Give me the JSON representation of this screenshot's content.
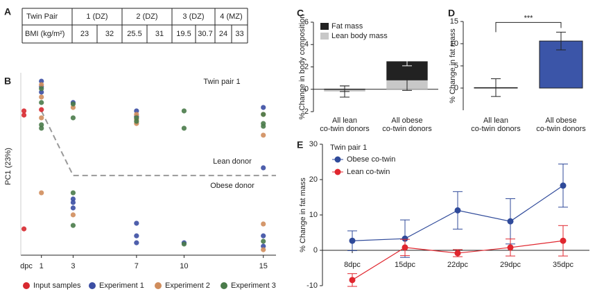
{
  "panel_labels": [
    "A",
    "B",
    "C",
    "D",
    "E"
  ],
  "table": {
    "header": [
      "Twin Pair",
      "1 (DZ)",
      "2 (DZ)",
      "3 (DZ)",
      "4 (MZ)"
    ],
    "row_label": "BMI (kg/m²)",
    "values": [
      23,
      32,
      25.5,
      31,
      19.5,
      30.7,
      24,
      33
    ]
  },
  "chart_data": [
    {
      "type": "scatter",
      "title": "Twin pair 1",
      "y_label": "PC1 (23%)",
      "x_label": "dpc",
      "xlim": [
        -0.3,
        15.8
      ],
      "xticks": [
        1,
        3,
        7,
        10,
        15
      ],
      "ylim": [
        0,
        100
      ],
      "annotations": [
        "Lean donor",
        "Obese donor"
      ],
      "trend_line": {
        "x": [
          1,
          3,
          15.8
        ],
        "y": [
          79.1,
          43.7,
          43.7
        ],
        "color": "#999999"
      },
      "legend": "bottom",
      "series": [
        {
          "name": "Input samples",
          "color": "#d7282f",
          "x": [
            -0.1,
            -0.1,
            -0.1,
            1
          ],
          "y": [
            79.1,
            76.8,
            14.4,
            79.8
          ]
        },
        {
          "name": "Experiment 1",
          "color": "#3b4ea3",
          "x": [
            1,
            1,
            1,
            3,
            7,
            7,
            15,
            15,
            3,
            3,
            3,
            7,
            7,
            7,
            10,
            15,
            15
          ],
          "y": [
            95.4,
            92.4,
            89.4,
            83.7,
            79.1,
            76.0,
            81.0,
            47.9,
            30.8,
            28.9,
            25.9,
            17.5,
            10.6,
            6.8,
            6.8,
            10.6,
            4.9
          ]
        },
        {
          "name": "Experiment 2",
          "color": "#d08d5c",
          "x": [
            1,
            1,
            1,
            1,
            3,
            3,
            7,
            7,
            7,
            15,
            15,
            15,
            15
          ],
          "y": [
            93.5,
            86.7,
            75.3,
            34.2,
            81.0,
            22.1,
            77.2,
            74.5,
            72.2,
            77.2,
            65.8,
            17.1,
            3.0
          ]
        },
        {
          "name": "Experiment 3",
          "color": "#4a7b4a",
          "x": [
            1,
            1,
            1,
            1,
            3,
            3,
            3,
            3,
            7,
            7,
            10,
            10,
            10,
            15,
            15,
            15,
            15
          ],
          "y": [
            91.3,
            83.7,
            71.5,
            69.6,
            82.9,
            75.3,
            34.2,
            16.3,
            75.3,
            73.4,
            79.1,
            69.6,
            6.1,
            77.2,
            72.2,
            70.7,
            7.6
          ]
        }
      ]
    },
    {
      "type": "stacked_bar",
      "y_label": "% Change in body composition",
      "categories": [
        [
          "All lean",
          "co-twin donors"
        ],
        [
          "All obese",
          "co-twin donors"
        ]
      ],
      "ylim": [
        -2,
        6
      ],
      "yticks": [
        -2,
        0,
        2,
        4,
        6
      ],
      "legend": "top-left",
      "series": [
        {
          "name": "Lean body mass",
          "color": "#c8c8c8",
          "values": [
            -0.2,
            0.8
          ],
          "errors": [
            0.5,
            0.9
          ]
        },
        {
          "name": "Fat mass",
          "color": "#222222",
          "values": [
            0.05,
            1.7
          ],
          "errors": [
            0.25,
            0.4
          ]
        }
      ]
    },
    {
      "type": "bar",
      "y_label": "% Change in fat mass",
      "categories": [
        [
          "All lean",
          "co-twin donors"
        ],
        [
          "All obese",
          "co-twin donors"
        ]
      ],
      "values": [
        0.1,
        10.6
      ],
      "errors": [
        2,
        2
      ],
      "colors": [
        "#ffffff",
        "#3b55a8"
      ],
      "ylim": [
        -5,
        15
      ],
      "yticks": [
        0,
        5,
        10,
        15
      ],
      "significance": "***"
    },
    {
      "type": "line",
      "title": "Twin pair 1",
      "y_label": "% Change in fat mass",
      "categories": [
        "8dpc",
        "15dpc",
        "22dpc",
        "29dpc",
        "35dpc"
      ],
      "ylim": [
        -10,
        30
      ],
      "yticks": [
        -10,
        0,
        10,
        20,
        30
      ],
      "legend": "top-left",
      "series": [
        {
          "name": "Obese co-twin",
          "color": "#2f4a9a",
          "values": [
            2.7,
            3.3,
            11.3,
            8.2,
            18.3
          ],
          "errors": [
            2.8,
            5.3,
            5.3,
            6.4,
            6.1
          ]
        },
        {
          "name": "Lean co-twin",
          "color": "#e0262e",
          "values": [
            -8.4,
            0.8,
            -0.8,
            0.8,
            2.7
          ],
          "errors": [
            1.8,
            2.3,
            1.0,
            2.4,
            4.3
          ]
        }
      ]
    }
  ]
}
